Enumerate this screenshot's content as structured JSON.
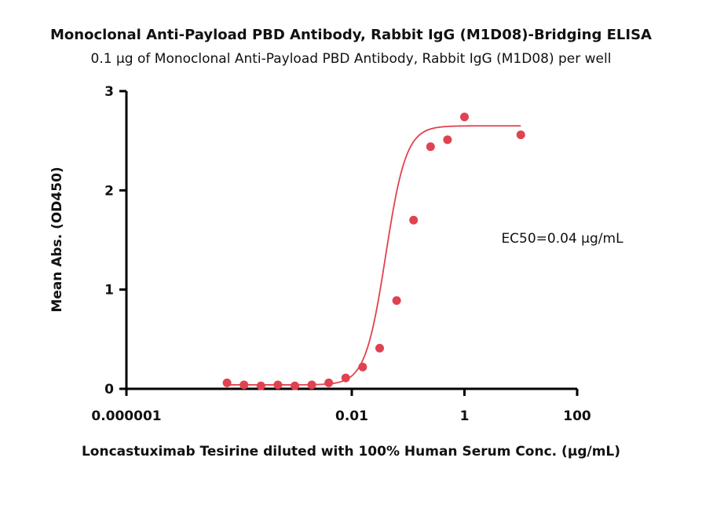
{
  "chart_data": {
    "type": "scatter",
    "title": "Monoclonal Anti-Payload PBD Antibody, Rabbit IgG (M1D08)-Bridging ELISA",
    "subtitle": "0.1 µg of Monoclonal Anti-Payload PBD Antibody, Rabbit IgG (M1D08) per well",
    "xlabel": "Loncastuximab Tesirine diluted with 100% Human Serum Conc. (µg/mL)",
    "ylabel": "Mean Abs. (OD450)",
    "x_scale": "log",
    "xlim": [
      1e-06,
      100
    ],
    "ylim": [
      0,
      3
    ],
    "x_ticks": [
      1e-06,
      0.01,
      1,
      100
    ],
    "x_tick_labels": [
      "0.000001",
      "0.01",
      "1",
      "100"
    ],
    "y_ticks": [
      0,
      1,
      2,
      3
    ],
    "y_tick_labels": [
      "0",
      "1",
      "2",
      "3"
    ],
    "annotation": "EC50=0.04 µg/mL",
    "grid": false,
    "color": "#e0424f",
    "series": [
      {
        "x": [
          6.1e-05,
          0.000122,
          0.000244,
          0.000488,
          0.000977,
          0.00195,
          0.0039,
          0.0078,
          0.0156,
          0.03125,
          0.0625,
          0.125,
          0.25,
          0.5,
          1.0,
          10.0
        ],
        "y": [
          0.06,
          0.04,
          0.03,
          0.04,
          0.03,
          0.04,
          0.06,
          0.11,
          0.22,
          0.41,
          0.89,
          1.7,
          2.44,
          2.51,
          2.74,
          2.56
        ]
      }
    ],
    "fit": {
      "model": "4PL",
      "bottom": 0.04,
      "top": 2.65,
      "ec50": 0.04,
      "hill": 2.4
    }
  }
}
